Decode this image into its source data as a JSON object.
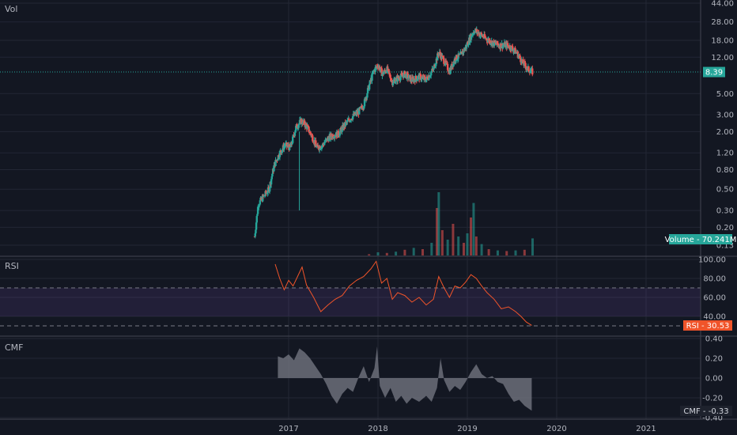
{
  "colors": {
    "background": "#131722",
    "grid": "#232734",
    "text": "#b2b5be",
    "up": "#26a69a",
    "down": "#ef5350",
    "rsi_line": "#f0542a",
    "rsi_band": "#7e57c2",
    "cmf_area": "#787b86",
    "price_line": "#26a69a",
    "rsi_label_bg": "#f0542a",
    "cmf_label_bg": "#1e222d"
  },
  "chart_data": [
    {
      "type": "candlestick",
      "title": "Vol",
      "scale": "log",
      "ylim": [
        0.12,
        44
      ],
      "yticks": [
        "44.00",
        "28.00",
        "18.00",
        "12.00",
        "5.00",
        "3.00",
        "2.00",
        "1.20",
        "0.80",
        "0.50",
        "0.30",
        "0.20",
        "0.13"
      ],
      "ytick_values": [
        44,
        28,
        18,
        12,
        5,
        3,
        2,
        1.2,
        0.8,
        0.5,
        0.3,
        0.2,
        0.13
      ],
      "xlim": [
        2016.0,
        2021.1
      ],
      "xticks": [
        "2017",
        "2018",
        "2019",
        "2020",
        "2021"
      ],
      "xtick_values": [
        2017,
        2018,
        2019,
        2020,
        2021
      ],
      "last_price": 8.39,
      "last_price_label": "8.39",
      "volume_label": "Volume - 70.241M",
      "price_path": [
        [
          2016.62,
          0.16
        ],
        [
          2016.66,
          0.35
        ],
        [
          2016.72,
          0.42
        ],
        [
          2016.78,
          0.5
        ],
        [
          2016.84,
          0.9
        ],
        [
          2016.9,
          1.2
        ],
        [
          2016.96,
          1.45
        ],
        [
          2017.02,
          1.35
        ],
        [
          2017.08,
          2.2
        ],
        [
          2017.14,
          2.6
        ],
        [
          2017.2,
          2.3
        ],
        [
          2017.26,
          1.8
        ],
        [
          2017.32,
          1.35
        ],
        [
          2017.38,
          1.45
        ],
        [
          2017.44,
          1.7
        ],
        [
          2017.5,
          1.85
        ],
        [
          2017.56,
          1.9
        ],
        [
          2017.62,
          2.3
        ],
        [
          2017.7,
          2.8
        ],
        [
          2017.78,
          3.2
        ],
        [
          2017.84,
          3.8
        ],
        [
          2017.9,
          6.0
        ],
        [
          2017.95,
          8.5
        ],
        [
          2018.0,
          10.0
        ],
        [
          2018.05,
          8.0
        ],
        [
          2018.1,
          9.0
        ],
        [
          2018.16,
          6.6
        ],
        [
          2018.22,
          7.2
        ],
        [
          2018.3,
          8.0
        ],
        [
          2018.38,
          6.9
        ],
        [
          2018.46,
          7.5
        ],
        [
          2018.54,
          7.0
        ],
        [
          2018.62,
          9.0
        ],
        [
          2018.68,
          13.5
        ],
        [
          2018.74,
          11.0
        ],
        [
          2018.8,
          8.5
        ],
        [
          2018.86,
          11.5
        ],
        [
          2018.92,
          12.5
        ],
        [
          2018.98,
          15.0
        ],
        [
          2019.04,
          20.0
        ],
        [
          2019.08,
          23.0
        ],
        [
          2019.14,
          21.0
        ],
        [
          2019.2,
          19.0
        ],
        [
          2019.28,
          17.0
        ],
        [
          2019.36,
          16.0
        ],
        [
          2019.44,
          16.0
        ],
        [
          2019.5,
          15.0
        ],
        [
          2019.56,
          13.0
        ],
        [
          2019.62,
          10.5
        ],
        [
          2019.68,
          9.0
        ],
        [
          2019.73,
          8.39
        ]
      ],
      "volume": [
        [
          2017.9,
          0.02
        ],
        [
          2018.0,
          0.05
        ],
        [
          2018.1,
          0.04
        ],
        [
          2018.2,
          0.06
        ],
        [
          2018.3,
          0.09
        ],
        [
          2018.4,
          0.12
        ],
        [
          2018.5,
          0.1
        ],
        [
          2018.6,
          0.2
        ],
        [
          2018.66,
          0.75
        ],
        [
          2018.68,
          1.0
        ],
        [
          2018.72,
          0.4
        ],
        [
          2018.78,
          0.25
        ],
        [
          2018.84,
          0.5
        ],
        [
          2018.9,
          0.3
        ],
        [
          2018.96,
          0.2
        ],
        [
          2019.0,
          0.35
        ],
        [
          2019.04,
          0.6
        ],
        [
          2019.07,
          0.83
        ],
        [
          2019.1,
          0.3
        ],
        [
          2019.16,
          0.18
        ],
        [
          2019.24,
          0.1
        ],
        [
          2019.34,
          0.08
        ],
        [
          2019.44,
          0.07
        ],
        [
          2019.54,
          0.08
        ],
        [
          2019.64,
          0.09
        ],
        [
          2019.73,
          0.27
        ]
      ]
    },
    {
      "type": "line",
      "title": "RSI",
      "ylim": [
        30,
        100
      ],
      "yticks": [
        "100.00",
        "80.00",
        "60.00",
        "40.00"
      ],
      "ytick_values": [
        100,
        80,
        60,
        40
      ],
      "band": [
        40,
        70
      ],
      "guide_levels": [
        70,
        30
      ],
      "last_value_label": "RSI - 30.53",
      "series": [
        [
          2016.85,
          95
        ],
        [
          2016.9,
          80
        ],
        [
          2016.95,
          68
        ],
        [
          2017.0,
          78
        ],
        [
          2017.05,
          72
        ],
        [
          2017.1,
          82
        ],
        [
          2017.15,
          92
        ],
        [
          2017.2,
          73
        ],
        [
          2017.28,
          60
        ],
        [
          2017.36,
          45
        ],
        [
          2017.44,
          52
        ],
        [
          2017.52,
          58
        ],
        [
          2017.6,
          62
        ],
        [
          2017.68,
          72
        ],
        [
          2017.76,
          78
        ],
        [
          2017.84,
          82
        ],
        [
          2017.92,
          90
        ],
        [
          2017.98,
          98
        ],
        [
          2018.04,
          75
        ],
        [
          2018.1,
          80
        ],
        [
          2018.16,
          58
        ],
        [
          2018.22,
          65
        ],
        [
          2018.3,
          62
        ],
        [
          2018.38,
          55
        ],
        [
          2018.46,
          60
        ],
        [
          2018.54,
          52
        ],
        [
          2018.62,
          58
        ],
        [
          2018.68,
          82
        ],
        [
          2018.74,
          70
        ],
        [
          2018.8,
          60
        ],
        [
          2018.86,
          72
        ],
        [
          2018.92,
          70
        ],
        [
          2018.98,
          76
        ],
        [
          2019.04,
          84
        ],
        [
          2019.1,
          80
        ],
        [
          2019.16,
          72
        ],
        [
          2019.22,
          65
        ],
        [
          2019.3,
          58
        ],
        [
          2019.38,
          48
        ],
        [
          2019.46,
          50
        ],
        [
          2019.54,
          45
        ],
        [
          2019.6,
          40
        ],
        [
          2019.66,
          34
        ],
        [
          2019.72,
          30.53
        ]
      ]
    },
    {
      "type": "area",
      "title": "CMF",
      "ylim": [
        -0.4,
        0.4
      ],
      "yticks": [
        "0.40",
        "0.20",
        "0.00",
        "-0.20",
        "-0.40"
      ],
      "ytick_values": [
        0.4,
        0.2,
        0.0,
        -0.2,
        -0.4
      ],
      "last_value_label": "CMF - -0.33",
      "series": [
        [
          2016.88,
          0.22
        ],
        [
          2016.94,
          0.2
        ],
        [
          2017.0,
          0.24
        ],
        [
          2017.06,
          0.18
        ],
        [
          2017.12,
          0.3
        ],
        [
          2017.18,
          0.26
        ],
        [
          2017.24,
          0.2
        ],
        [
          2017.3,
          0.12
        ],
        [
          2017.36,
          0.04
        ],
        [
          2017.42,
          -0.06
        ],
        [
          2017.48,
          -0.18
        ],
        [
          2017.54,
          -0.26
        ],
        [
          2017.6,
          -0.16
        ],
        [
          2017.66,
          -0.1
        ],
        [
          2017.72,
          -0.14
        ],
        [
          2017.78,
          0.0
        ],
        [
          2017.84,
          0.12
        ],
        [
          2017.9,
          -0.04
        ],
        [
          2017.96,
          0.1
        ],
        [
          2017.99,
          0.32
        ],
        [
          2018.02,
          -0.08
        ],
        [
          2018.08,
          -0.2
        ],
        [
          2018.14,
          -0.1
        ],
        [
          2018.2,
          -0.24
        ],
        [
          2018.26,
          -0.18
        ],
        [
          2018.32,
          -0.26
        ],
        [
          2018.38,
          -0.2
        ],
        [
          2018.46,
          -0.24
        ],
        [
          2018.54,
          -0.18
        ],
        [
          2018.6,
          -0.24
        ],
        [
          2018.66,
          -0.1
        ],
        [
          2018.7,
          0.2
        ],
        [
          2018.74,
          -0.02
        ],
        [
          2018.8,
          -0.14
        ],
        [
          2018.86,
          -0.08
        ],
        [
          2018.92,
          -0.12
        ],
        [
          2018.98,
          -0.04
        ],
        [
          2019.04,
          0.06
        ],
        [
          2019.1,
          0.14
        ],
        [
          2019.16,
          0.04
        ],
        [
          2019.22,
          0.0
        ],
        [
          2019.28,
          0.02
        ],
        [
          2019.34,
          -0.04
        ],
        [
          2019.4,
          -0.06
        ],
        [
          2019.46,
          -0.16
        ],
        [
          2019.52,
          -0.24
        ],
        [
          2019.58,
          -0.22
        ],
        [
          2019.64,
          -0.28
        ],
        [
          2019.72,
          -0.33
        ]
      ]
    }
  ]
}
